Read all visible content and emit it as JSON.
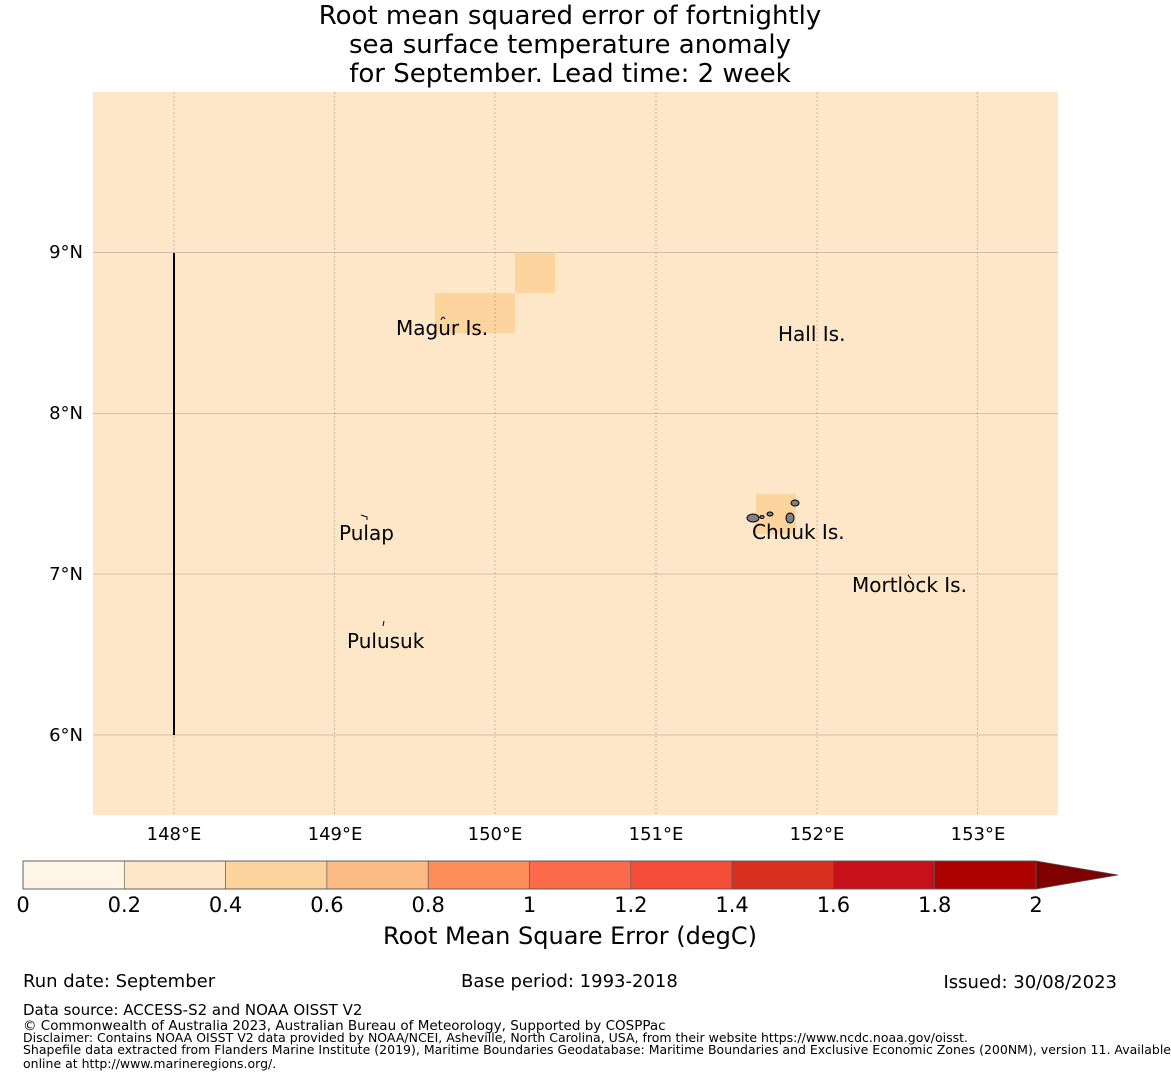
{
  "title": {
    "line1": "Root mean squared error of fortnightly",
    "line2": "sea surface temperature anomaly",
    "line3": "for September. Lead time: 2 week"
  },
  "map": {
    "background_color": "#fee6c8",
    "cell_color": "#fdd49e",
    "lon_ticks": [
      "148°E",
      "149°E",
      "150°E",
      "151°E",
      "152°E",
      "153°E"
    ],
    "lat_ticks": [
      "9°N",
      "8°N",
      "7°N",
      "6°N"
    ],
    "places": [
      {
        "name": "Magur Is."
      },
      {
        "name": "Hall Is."
      },
      {
        "name": "Pulap"
      },
      {
        "name": "Chuuk Is."
      },
      {
        "name": "Mortlock Is."
      },
      {
        "name": "Pulusuk"
      }
    ]
  },
  "colorbar": {
    "title": "Root Mean Square Error (degC)",
    "tick_labels": [
      "0",
      "0.2",
      "0.4",
      "0.6",
      "0.8",
      "1",
      "1.2",
      "1.4",
      "1.6",
      "1.8",
      "2"
    ],
    "colors": [
      "#fff5e6",
      "#fee6c8",
      "#fdd49e",
      "#fdbb84",
      "#fc8d59",
      "#fb6a4a",
      "#f44d38",
      "#d7301f",
      "#c6101a",
      "#ad0000"
    ],
    "extend_color": "#7f0000"
  },
  "footer": {
    "run_date": "Run date: September",
    "base_period": "Base period: 1993-2018",
    "issued": "Issued: 30/08/2023",
    "data_source": "Data source: ACCESS-S2 and NOAA OISST V2",
    "copyright": "© Commonwealth of Australia 2023, Australian Bureau of Meteorology, Supported by COSPPac",
    "disclaimer": "Disclaimer: Contains NOAA OISST V2 data provided by NOAA/NCEI, Asheville, North Carolina, USA, from their website https://www.ncdc.noaa.gov/oisst.",
    "shapefile_1": "Shapefile data extracted from Flanders Marine Institute (2019), Maritime Boundaries Geodatabase: Maritime Boundaries and Exclusive Economic Zones (200NM), version 11. Available",
    "shapefile_2": "online at http://www.marineregions.org/."
  }
}
